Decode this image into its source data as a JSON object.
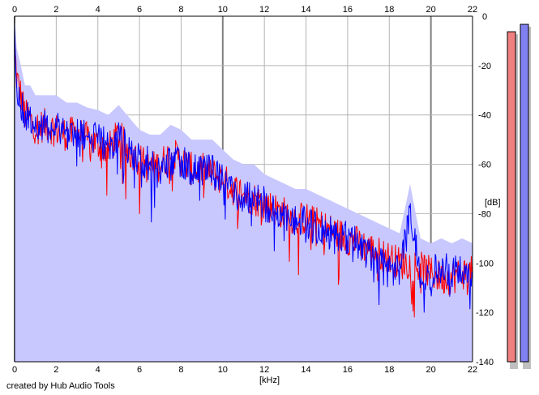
{
  "credit": "created by Hub Audio Tools",
  "chart_data": {
    "type": "area",
    "title": "",
    "xlabel": "[kHz]",
    "ylabel": "[dB]",
    "xlim": [
      0,
      22
    ],
    "ylim": [
      -140,
      0
    ],
    "x_ticks": [
      0,
      2,
      4,
      6,
      8,
      10,
      12,
      14,
      16,
      18,
      20,
      22
    ],
    "y_ticks": [
      0,
      -20,
      -40,
      -60,
      -80,
      -100,
      -120,
      -140
    ],
    "grid": true,
    "x_axis_labels": "top and bottom",
    "y_axis_labels": "right",
    "series": [
      {
        "color": "#ff0000",
        "x": [
          0,
          0.1,
          0.25,
          0.5,
          0.75,
          1,
          1.5,
          2,
          2.5,
          3,
          3.5,
          4,
          4.5,
          5,
          5.5,
          6,
          6.5,
          7,
          7.5,
          8,
          8.5,
          9,
          9.5,
          10,
          10.5,
          11,
          11.5,
          12,
          12.5,
          13,
          13.5,
          14,
          14.5,
          15,
          15.5,
          16,
          16.5,
          17,
          17.5,
          18,
          18.5,
          19,
          19.5,
          20,
          20.5,
          21,
          21.5,
          22
        ],
        "values": [
          -12,
          -25,
          -30,
          -40,
          -42,
          -45,
          -44,
          -46,
          -48,
          -47,
          -50,
          -52,
          -54,
          -48,
          -55,
          -58,
          -62,
          -60,
          -56,
          -58,
          -62,
          -62,
          -64,
          -66,
          -70,
          -72,
          -74,
          -76,
          -78,
          -80,
          -82,
          -82,
          -84,
          -86,
          -88,
          -90,
          -92,
          -94,
          -96,
          -98,
          -100,
          -100,
          -102,
          -104,
          -106,
          -106,
          -104,
          -104
        ]
      },
      {
        "color": "#0000ff",
        "x": [
          0,
          0.1,
          0.25,
          0.5,
          0.75,
          1,
          1.5,
          2,
          2.5,
          3,
          3.5,
          4,
          4.5,
          5,
          5.5,
          6,
          6.5,
          7,
          7.5,
          8,
          8.5,
          9,
          9.5,
          10,
          10.5,
          11,
          11.5,
          12,
          12.5,
          13,
          13.5,
          14,
          14.5,
          15,
          15.5,
          16,
          16.5,
          17,
          17.5,
          18,
          18.5,
          19,
          19.5,
          20,
          20.5,
          21,
          21.5,
          22
        ],
        "values": [
          -10,
          -28,
          -32,
          -42,
          -40,
          -44,
          -45,
          -44,
          -47,
          -48,
          -49,
          -50,
          -52,
          -50,
          -53,
          -58,
          -60,
          -62,
          -60,
          -58,
          -62,
          -64,
          -62,
          -66,
          -70,
          -74,
          -72,
          -76,
          -80,
          -80,
          -82,
          -84,
          -86,
          -88,
          -88,
          -90,
          -92,
          -96,
          -98,
          -100,
          -102,
          -80,
          -104,
          -104,
          -102,
          -104,
          -102,
          -104
        ]
      }
    ],
    "fill_color": "#c8c8ff",
    "level_meters": [
      {
        "color": "#f08080",
        "level": -3
      },
      {
        "color": "#8080f0",
        "level": 0
      }
    ]
  }
}
